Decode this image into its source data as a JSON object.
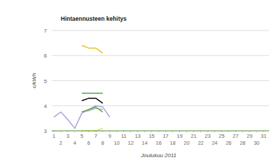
{
  "chart_data": {
    "type": "line",
    "title": "Hintaennusteen kehitys",
    "x_label": "Joulukuu 2011",
    "y_label": "c/kWh",
    "x": [
      1,
      2,
      3,
      4,
      5,
      6,
      7,
      8,
      9,
      10,
      11,
      12,
      13,
      14,
      15,
      16,
      17,
      18,
      19,
      20,
      21,
      22,
      23,
      24,
      25,
      26,
      27,
      28,
      29,
      30,
      31
    ],
    "xlim": [
      1,
      31
    ],
    "xticks": [
      1,
      2,
      3,
      4,
      5,
      6,
      7,
      8,
      9,
      10,
      11,
      12,
      13,
      14,
      15,
      16,
      17,
      18,
      19,
      20,
      21,
      22,
      23,
      24,
      25,
      26,
      27,
      28,
      29,
      30,
      31
    ],
    "ylim": [
      3,
      7
    ],
    "yticks": [
      3,
      4,
      5,
      6,
      7
    ],
    "grid": true,
    "series": [
      {
        "color": "#a9a3d9",
        "values": [
          3.55,
          3.75,
          3.45,
          3.1,
          3.7,
          3.85,
          4.0,
          3.95,
          3.55,
          null,
          null,
          null,
          null,
          null,
          null,
          null,
          null,
          null,
          null,
          null,
          null,
          null,
          null,
          null,
          null,
          null,
          null,
          null,
          null,
          null,
          null
        ]
      },
      {
        "color": "#8fb8dc",
        "values": [
          null,
          null,
          null,
          null,
          3.75,
          3.8,
          3.9,
          3.85,
          null,
          null,
          null,
          null,
          null,
          null,
          null,
          null,
          null,
          null,
          null,
          null,
          null,
          null,
          null,
          null,
          null,
          null,
          null,
          null,
          null,
          null,
          null
        ]
      },
      {
        "color": "#e2c12a",
        "values": [
          null,
          null,
          null,
          null,
          6.4,
          6.3,
          6.3,
          6.1,
          null,
          null,
          null,
          null,
          null,
          null,
          null,
          null,
          null,
          null,
          null,
          null,
          null,
          null,
          null,
          null,
          null,
          null,
          null,
          null,
          null,
          null,
          null
        ]
      },
      {
        "color": "#44a844",
        "values": [
          null,
          null,
          null,
          null,
          4.5,
          4.5,
          4.5,
          4.5,
          null,
          null,
          null,
          null,
          null,
          null,
          null,
          null,
          null,
          null,
          null,
          null,
          null,
          null,
          null,
          null,
          null,
          null,
          null,
          null,
          null,
          null,
          null
        ]
      },
      {
        "color": "#000000",
        "values": [
          null,
          null,
          null,
          null,
          4.2,
          4.3,
          4.3,
          4.1,
          null,
          null,
          null,
          null,
          null,
          null,
          null,
          null,
          null,
          null,
          null,
          null,
          null,
          null,
          null,
          null,
          null,
          null,
          null,
          null,
          null,
          null,
          null
        ]
      },
      {
        "color": "#7fa234",
        "values": [
          null,
          null,
          null,
          null,
          3.75,
          3.85,
          3.95,
          3.75,
          null,
          null,
          null,
          null,
          null,
          null,
          null,
          null,
          null,
          null,
          null,
          null,
          null,
          null,
          null,
          null,
          null,
          null,
          null,
          null,
          null,
          null,
          null
        ]
      },
      {
        "color": "#d6e05a",
        "values": [
          null,
          null,
          null,
          null,
          3.0,
          3.0,
          3.0,
          3.1,
          null,
          null,
          null,
          null,
          null,
          null,
          null,
          null,
          null,
          null,
          null,
          null,
          null,
          null,
          null,
          null,
          null,
          null,
          null,
          null,
          null,
          null,
          null
        ]
      }
    ]
  }
}
